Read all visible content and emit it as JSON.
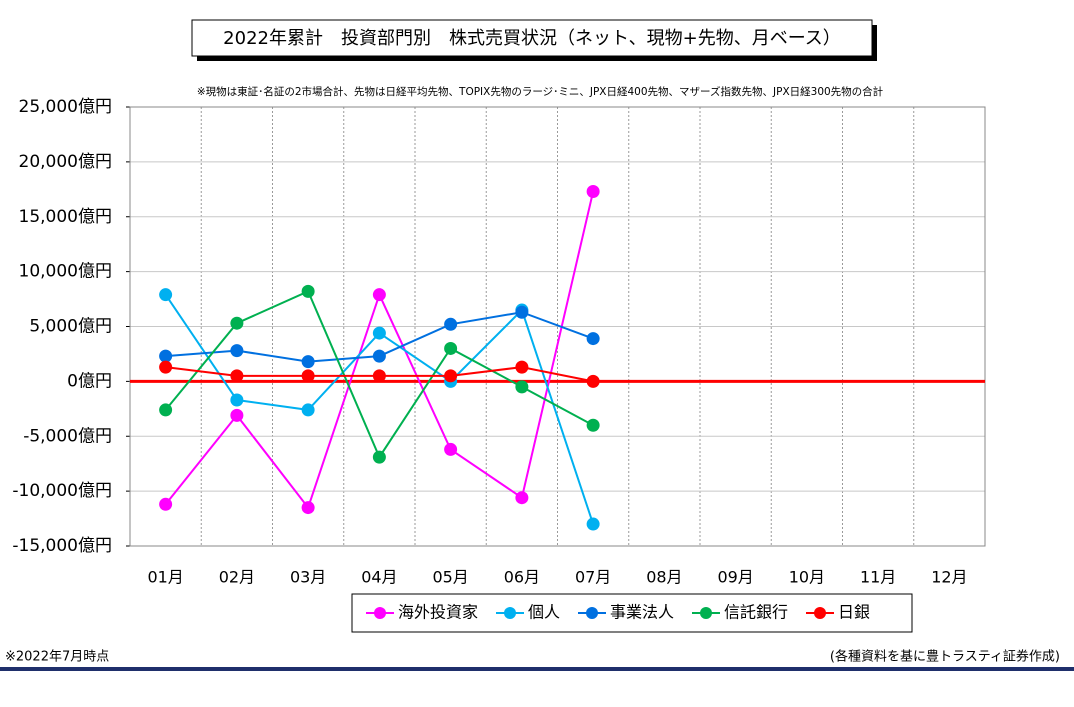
{
  "chart_data": {
    "type": "line",
    "title": "2022年累計　投資部門別　株式売買状況（ネット、現物+先物、月ベース）",
    "subtitle": "※現物は東証･名証の2市場合計、先物は日経平均先物、TOPIX先物のラージ･ミニ、JPX日経400先物、マザーズ指数先物、JPX日経300先物の合計",
    "footnote": "※2022年7月時点",
    "source": "(各種資料を基に豊トラスティ証券作成)",
    "categories": [
      "01月",
      "02月",
      "03月",
      "04月",
      "05月",
      "06月",
      "07月",
      "08月",
      "09月",
      "10月",
      "11月",
      "12月"
    ],
    "series": [
      {
        "name": "海外投資家",
        "color": "#ff00ff",
        "values": [
          -11200,
          -3100,
          -11500,
          7900,
          -6200,
          -10600,
          17300,
          null,
          null,
          null,
          null,
          null
        ]
      },
      {
        "name": "個人",
        "color": "#00b0f0",
        "values": [
          7900,
          -1700,
          -2600,
          4400,
          0,
          6500,
          -13000,
          null,
          null,
          null,
          null,
          null
        ]
      },
      {
        "name": "事業法人",
        "color": "#0070e0",
        "values": [
          2300,
          2800,
          1800,
          2300,
          5200,
          6300,
          3900,
          null,
          null,
          null,
          null,
          null
        ]
      },
      {
        "name": "信託銀行",
        "color": "#00b050",
        "values": [
          -2600,
          5300,
          8200,
          -6900,
          3000,
          -500,
          -4000,
          null,
          null,
          null,
          null,
          null
        ]
      },
      {
        "name": "日銀",
        "color": "#ff0000",
        "values": [
          1300,
          500,
          500,
          500,
          500,
          1300,
          0,
          null,
          null,
          null,
          null,
          null
        ]
      }
    ],
    "ylim": [
      -15000,
      25000
    ],
    "yticks": [
      {
        "value": -15000,
        "label": "-15,000億円"
      },
      {
        "value": -10000,
        "label": "-10,000億円"
      },
      {
        "value": -5000,
        "label": "-5,000億円"
      },
      {
        "value": 0,
        "label": "0億円"
      },
      {
        "value": 5000,
        "label": "5,000億円"
      },
      {
        "value": 10000,
        "label": "10,000億円"
      },
      {
        "value": 15000,
        "label": "15,000億円"
      },
      {
        "value": 20000,
        "label": "20,000億円"
      },
      {
        "value": 25000,
        "label": "25,000億円"
      }
    ],
    "grid": true
  }
}
